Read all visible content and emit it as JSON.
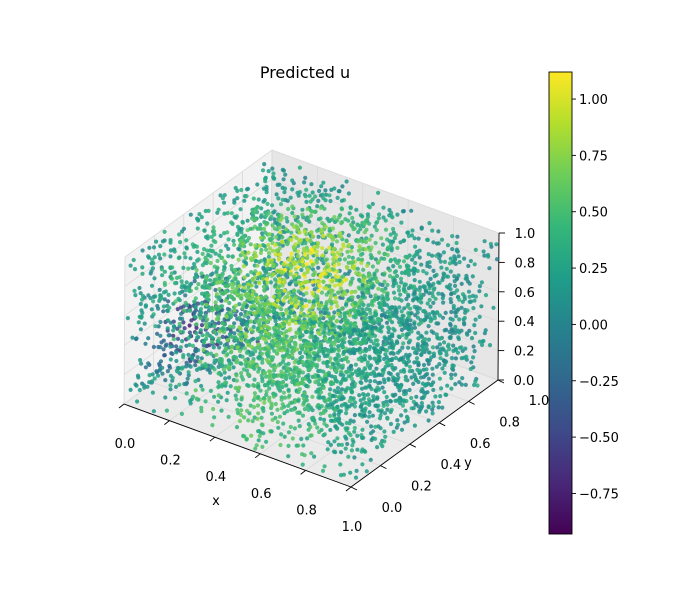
{
  "chart_data": {
    "type": "scatter",
    "title": "Predicted u",
    "xlabel": "x",
    "ylabel": "y",
    "zlabel": "",
    "xlim": [
      0,
      1
    ],
    "ylim": [
      0,
      1
    ],
    "zlim": [
      0,
      1
    ],
    "x_ticks": [
      "0.0",
      "0.2",
      "0.4",
      "0.6",
      "0.8",
      "1.0"
    ],
    "y_ticks": [
      "0.0",
      "0.2",
      "0.4",
      "0.6",
      "0.8",
      "1.0"
    ],
    "z_ticks": [
      "0.0",
      "0.2",
      "0.4",
      "0.6",
      "0.8",
      "1.0"
    ],
    "colorbar": {
      "colormap": "viridis",
      "range": [
        -0.93,
        1.12
      ],
      "ticks": [
        "−0.75",
        "−0.50",
        "−0.25",
        "0.00",
        "0.25",
        "0.50",
        "0.75",
        "1.00"
      ],
      "tick_values": [
        -0.75,
        -0.5,
        -0.25,
        0,
        0.25,
        0.5,
        0.75,
        1.0
      ]
    },
    "grid": true,
    "projection": "3d",
    "samples": [
      {
        "x": 0.1,
        "y": 0.3,
        "z": 0.3,
        "u": -0.85
      },
      {
        "x": 0.15,
        "y": 0.4,
        "z": 0.2,
        "u": -0.7
      },
      {
        "x": 0.2,
        "y": 0.6,
        "z": 0.1,
        "u": -0.5
      },
      {
        "x": 0.3,
        "y": 0.5,
        "z": 0.5,
        "u": 0.1
      },
      {
        "x": 0.45,
        "y": 0.6,
        "z": 0.7,
        "u": 0.9
      },
      {
        "x": 0.55,
        "y": 0.55,
        "z": 0.75,
        "u": 1.05
      },
      {
        "x": 0.7,
        "y": 0.4,
        "z": 0.6,
        "u": 0.6
      },
      {
        "x": 0.85,
        "y": 0.2,
        "z": 0.3,
        "u": 0.35
      },
      {
        "x": 0.95,
        "y": 0.1,
        "z": 0.1,
        "u": 0.05
      },
      {
        "x": 0.6,
        "y": 0.3,
        "z": 0.2,
        "u": 0.2
      }
    ]
  },
  "colors": {
    "axis": "#000000",
    "pane_x": "#f2f2f2",
    "pane_y": "#e6e6e6",
    "pane_z": "#ebebeb",
    "grid": "#d9d9d9"
  }
}
